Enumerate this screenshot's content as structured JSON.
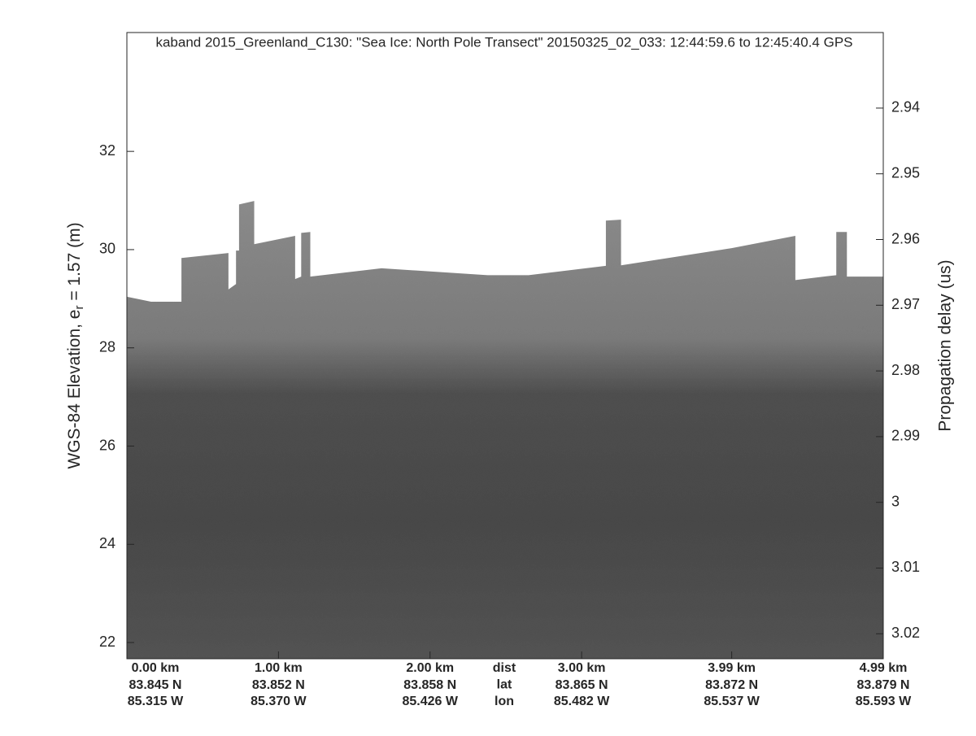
{
  "chart_data": {
    "type": "echogram",
    "title": "kaband 2015_Greenland_C130: \"Sea Ice: North Pole Transect\"  20150325_02_033: 12:44:59.6 to 12:45:40.4 GPS",
    "ylabel": "WGS-84 Elevation, e_r = 1.57 (m)",
    "y2label": "Propagation delay (us)",
    "xlim": [
      0,
      4.99
    ],
    "xticks": [
      {
        "value": 0,
        "label": "0.00 km"
      },
      {
        "value": 1,
        "label": "1.00 km"
      },
      {
        "value": 2,
        "label": "2.00 km"
      },
      {
        "value": 3,
        "label": "3.00 km"
      },
      {
        "value": 3.99,
        "label": "3.99 km"
      },
      {
        "value": 4.99,
        "label": "4.99 km"
      }
    ],
    "lat_labels": [
      "83.845 N",
      "83.852 N",
      "83.858 N",
      "83.865 N",
      "83.872 N",
      "83.879 N"
    ],
    "lon_labels": [
      "85.315 W",
      "85.370 W",
      "85.426 W",
      "85.482 W",
      "85.537 W",
      "85.593 W"
    ],
    "row_labels": [
      "dist",
      "lat",
      "lon"
    ],
    "ylim": [
      21.67,
      34.42
    ],
    "yticks": [
      22,
      24,
      26,
      28,
      30,
      32
    ],
    "y2lim": [
      3.0238,
      2.9285
    ],
    "y2ticks": [
      2.94,
      2.95,
      2.96,
      2.97,
      2.98,
      2.99,
      3,
      3.01,
      3.02
    ],
    "surface": {
      "x": [
        0.0,
        0.16,
        0.36,
        0.36,
        0.67,
        0.67,
        0.72,
        0.72,
        0.74,
        0.74,
        0.84,
        0.84,
        1.11,
        1.11,
        1.15,
        1.15,
        1.21,
        1.21,
        1.68,
        2.38,
        2.65,
        3.16,
        3.16,
        3.26,
        3.26,
        3.99,
        4.41,
        4.41,
        4.68,
        4.68,
        4.75,
        4.75,
        4.99
      ],
      "values": [
        29.04,
        28.94,
        28.94,
        29.83,
        29.93,
        29.19,
        29.3,
        29.98,
        29.98,
        30.92,
        30.99,
        30.11,
        30.28,
        29.4,
        29.45,
        30.34,
        30.36,
        29.45,
        29.62,
        29.48,
        29.48,
        29.67,
        30.59,
        30.61,
        29.68,
        30.03,
        30.28,
        29.38,
        29.48,
        30.36,
        30.36,
        29.45,
        29.45
      ]
    }
  }
}
